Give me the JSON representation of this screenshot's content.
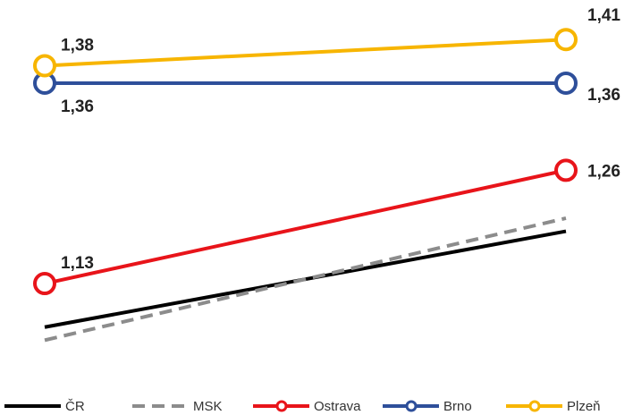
{
  "chart_data": {
    "type": "line",
    "categories": [
      "",
      ""
    ],
    "title": "",
    "xlabel": "",
    "ylabel": "",
    "ylim": [
      1.05,
      1.44
    ],
    "grid": false,
    "legend_position": "bottom",
    "series": [
      {
        "name": "ČR",
        "values": [
          1.08,
          1.19
        ],
        "color": "#000000",
        "style": "solid",
        "markers": false,
        "labels": [
          "",
          ""
        ]
      },
      {
        "name": "MSK",
        "values": [
          1.065,
          1.205
        ],
        "color": "#8c8c8c",
        "style": "dashed",
        "markers": false,
        "labels": [
          "",
          ""
        ]
      },
      {
        "name": "Ostrava",
        "values": [
          1.13,
          1.26
        ],
        "color": "#e8141a",
        "style": "solid",
        "markers": true,
        "labels": [
          "1,13",
          "1,26"
        ]
      },
      {
        "name": "Brno",
        "values": [
          1.36,
          1.36
        ],
        "color": "#2e4f9a",
        "style": "solid",
        "markers": true,
        "labels": [
          "1,36",
          "1,36"
        ]
      },
      {
        "name": "Plzeň",
        "values": [
          1.38,
          1.41
        ],
        "color": "#f7b500",
        "style": "solid",
        "markers": true,
        "labels": [
          "1,38",
          "1,41"
        ]
      }
    ]
  }
}
